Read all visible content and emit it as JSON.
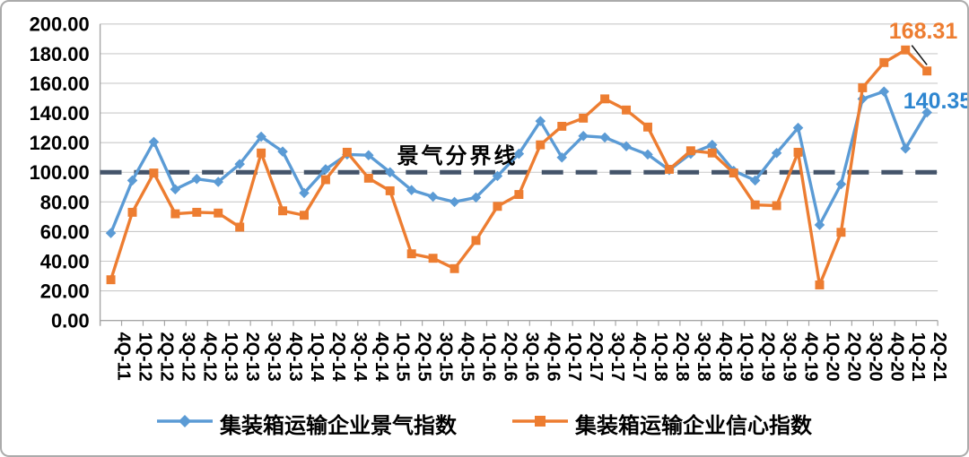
{
  "chart_data": {
    "type": "line",
    "title": "",
    "categories": [
      "4Q-11",
      "1Q-12",
      "2Q-12",
      "3Q-12",
      "4Q-12",
      "1Q-13",
      "2Q-13",
      "3Q-13",
      "4Q-13",
      "1Q-14",
      "2Q-14",
      "3Q-14",
      "4Q-14",
      "1Q-15",
      "2Q-15",
      "3Q-15",
      "4Q-15",
      "1Q-16",
      "2Q-16",
      "3Q-16",
      "4Q-16",
      "1Q-17",
      "2Q-17",
      "3Q-17",
      "4Q-17",
      "1Q-18",
      "2Q-18",
      "3Q-18",
      "4Q-18",
      "1Q-19",
      "2Q-19",
      "3Q-19",
      "4Q-19",
      "1Q-20",
      "2Q-20",
      "3Q-20",
      "4Q-20",
      "1Q-21",
      "2Q-21"
    ],
    "series": [
      {
        "id": "prosperity",
        "name": "集装箱运输企业景气指数",
        "color": "#5B9BD5",
        "marker": "diamond",
        "values": [
          59,
          94.5,
          120.5,
          88.5,
          95.5,
          93.5,
          105.5,
          124,
          114,
          86,
          102,
          112,
          111.5,
          100,
          88,
          83.5,
          80,
          83,
          97.5,
          112.5,
          134.5,
          110,
          124.5,
          123.5,
          117.5,
          112,
          101.5,
          112.5,
          118.5,
          101,
          94.5,
          113,
          130,
          64.5,
          92,
          149.5,
          154.5,
          116,
          140.35
        ]
      },
      {
        "id": "confidence",
        "name": "集装箱运输企业信心指数",
        "color": "#ED7D31",
        "marker": "square",
        "values": [
          27.5,
          73,
          99.5,
          72,
          73,
          72.5,
          63,
          113,
          74,
          71,
          95,
          113.5,
          96,
          87.5,
          45,
          42,
          35,
          54,
          77,
          85,
          118.5,
          131,
          136.5,
          149.5,
          142,
          130.5,
          102,
          114.5,
          113,
          99.5,
          78,
          77.5,
          113.5,
          24,
          59.5,
          157,
          174,
          182.5,
          168.31
        ]
      }
    ],
    "ylim": [
      0,
      200
    ],
    "ytick_step": 20,
    "ytick_labels": [
      "0.00",
      "20.00",
      "40.00",
      "60.00",
      "80.00",
      "100.00",
      "120.00",
      "140.00",
      "160.00",
      "180.00",
      "200.00"
    ],
    "xlabel": "",
    "ylabel": "",
    "grid": "horizontal",
    "legend_position": "bottom",
    "reference_line": {
      "value": 100,
      "label": "景气分界线",
      "color": "#44546A",
      "style": "dashed"
    },
    "annotations": [
      {
        "text": "168.31",
        "value": 168.31,
        "target_series": "confidence",
        "target_category": "2Q-21",
        "color": "#ED7D31"
      },
      {
        "text": "140.35",
        "value": 140.35,
        "target_series": "prosperity",
        "target_category": "2Q-21",
        "color": "#2E86D0"
      }
    ]
  }
}
